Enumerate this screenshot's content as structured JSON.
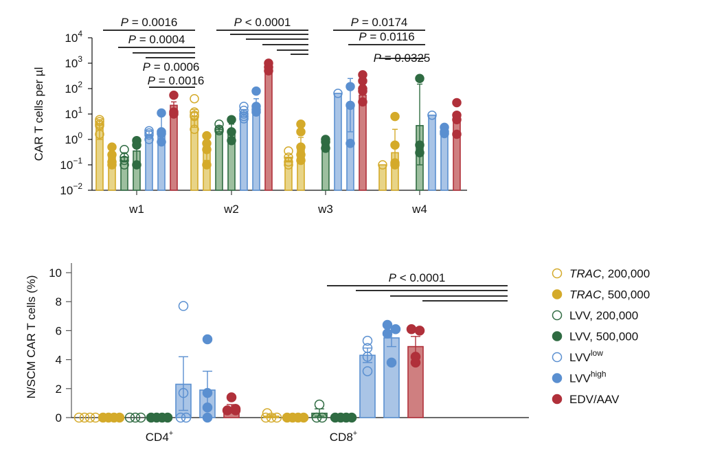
{
  "chart_data": [
    {
      "id": "top",
      "type": "bar",
      "scale": "log",
      "title": "",
      "ylabel": "CAR T cells per µl",
      "xlabel": "",
      "ylim": [
        0.01,
        10000
      ],
      "yticks": [
        {
          "base": "10",
          "exp": "4",
          "value": 10000
        },
        {
          "base": "10",
          "exp": "3",
          "value": 1000
        },
        {
          "base": "10",
          "exp": "2",
          "value": 100
        },
        {
          "base": "10",
          "exp": "1",
          "value": 10
        },
        {
          "base": "10",
          "exp": "0",
          "value": 1
        },
        {
          "base": "10",
          "exp": "−1",
          "value": 0.1
        },
        {
          "base": "10",
          "exp": "−2",
          "value": 0.01
        }
      ],
      "categories": [
        "w1",
        "w2",
        "w3",
        "w4"
      ],
      "series": [
        {
          "name": "TRAC, 200,000",
          "values": [
            4,
            8,
            0.2,
            0.1
          ],
          "points": [
            [
              6,
              5,
              4,
              3.5,
              1.6
            ],
            [
              40,
              12,
              9,
              8,
              2.5
            ],
            [
              0.35,
              0.2,
              0.13,
              0.1
            ],
            [
              0.1
            ]
          ]
        },
        {
          "name": "TRAC, 500,000",
          "values": [
            0.25,
            0.5,
            0.55,
            0.3
          ],
          "points": [
            [
              0.5,
              0.25,
              0.13,
              0.1
            ],
            [
              1.4,
              0.7,
              0.4,
              0.1
            ],
            [
              4,
              2,
              0.5,
              0.25,
              0.15
            ],
            [
              8,
              0.6,
              0.12,
              0.1
            ]
          ]
        },
        {
          "name": "LVV, 200,000",
          "values": [
            0.2,
            2.5,
            null,
            null
          ],
          "points": [
            [
              0.4,
              0.2,
              0.15,
              0.1
            ],
            [
              4,
              2.5,
              2.2
            ]
          ],
          "missing": [
            false,
            false,
            true,
            true
          ]
        },
        {
          "name": "LVV, 500,000",
          "values": [
            0.35,
            2.3,
            0.6,
            3.5
          ],
          "points": [
            [
              0.9,
              0.6,
              0.1
            ],
            [
              6,
              2,
              0.9
            ],
            [
              1,
              0.8,
              0.45
            ],
            [
              250,
              0.6,
              0.3
            ]
          ]
        },
        {
          "name": "LVVlow",
          "values": [
            1.5,
            12,
            65,
            9
          ],
          "points": [
            [
              2.2,
              1.8,
              1.5,
              1
            ],
            [
              20,
              14,
              10,
              8,
              6.5
            ],
            [
              65
            ],
            [
              9
            ]
          ]
        },
        {
          "name": "LVVhigh",
          "values": [
            2,
            15,
            22,
            2.5
          ],
          "points": [
            [
              11,
              2,
              1.7,
              0.8
            ],
            [
              80,
              20,
              15,
              12
            ],
            [
              120,
              22,
              0.7
            ],
            [
              3,
              2,
              1.7
            ]
          ]
        },
        {
          "name": "EDV/AAV",
          "values": [
            22,
            600,
            55,
            8
          ],
          "points": [
            [
              55,
              12,
              10
            ],
            [
              1000,
              700,
              500
            ],
            [
              350,
              200,
              100,
              80,
              30
            ],
            [
              28,
              9,
              6,
              1.6
            ]
          ]
        }
      ],
      "errors": [
        [
          [
            1,
            6
          ],
          [
            0.15,
            0.3
          ],
          [
            0.13,
            0.3
          ],
          [
            0.12,
            0.8
          ],
          [
            1.2,
            2.2
          ],
          [
            0.9,
            11
          ],
          [
            15,
            30
          ]
        ],
        [
          [
            3,
            15
          ],
          [
            0.15,
            0.8
          ],
          [
            2,
            3.5
          ],
          [
            1,
            4
          ],
          [
            8,
            15
          ],
          [
            10,
            40
          ],
          [
            500,
            800
          ]
        ],
        [
          [
            0.13,
            0.25
          ],
          [
            0.15,
            1.2
          ],
          null,
          [
            0.45,
            0.9
          ],
          null,
          [
            2,
            250
          ],
          [
            35,
            80
          ]
        ],
        [
          null,
          [
            0.1,
            2.5
          ],
          null,
          [
            0.1,
            150
          ],
          null,
          null,
          null
        ]
      ],
      "significance": [
        {
          "label": "P = 0.0016",
          "group": "w1",
          "bars": [
            0,
            6
          ]
        },
        {
          "label": "P = 0.0004",
          "group": "w1",
          "bars": [
            1,
            6
          ]
        },
        {
          "label": "",
          "group": "w1",
          "bars": [
            2,
            6
          ]
        },
        {
          "label": "P = 0.0006",
          "group": "w1",
          "bars": [
            3,
            6
          ]
        },
        {
          "label": "P = 0.0016",
          "group": "w1",
          "bars": [
            4,
            6
          ]
        },
        {
          "label": "P < 0.0001",
          "group": "w2",
          "bars": [
            0,
            6
          ]
        },
        {
          "label": "",
          "group": "w2",
          "bars": [
            1,
            6
          ]
        },
        {
          "label": "",
          "group": "w2",
          "bars": [
            2,
            6
          ]
        },
        {
          "label": "",
          "group": "w2",
          "bars": [
            3,
            6
          ]
        },
        {
          "label": "",
          "group": "w2",
          "bars": [
            4,
            6
          ]
        },
        {
          "label": "",
          "group": "w2",
          "bars": [
            5,
            6
          ]
        },
        {
          "label": "P = 0.0174",
          "group": "w3",
          "bars": [
            0,
            6
          ]
        },
        {
          "label": "P = 0.0116",
          "group": "w3",
          "bars": [
            1,
            6
          ]
        },
        {
          "label": "P = 0.0325",
          "group": "w3",
          "bars": [
            3,
            6
          ]
        }
      ]
    },
    {
      "id": "bottom",
      "type": "bar",
      "scale": "linear",
      "title": "",
      "ylabel": "N/SCM CAR T cells (%)",
      "xlabel": "",
      "ylim": [
        0,
        10
      ],
      "yticks": [
        0,
        2,
        4,
        6,
        8,
        10
      ],
      "categories": [
        {
          "base": "CD4",
          "sup": "+"
        },
        {
          "base": "CD8",
          "sup": "+"
        }
      ],
      "series": [
        {
          "name": "TRAC, 200,000",
          "values": [
            0,
            0.1
          ],
          "points": [
            [
              0,
              0,
              0,
              0
            ],
            [
              0.3,
              0,
              0,
              0
            ]
          ]
        },
        {
          "name": "TRAC, 500,000",
          "values": [
            0,
            0
          ],
          "points": [
            [
              0,
              0,
              0,
              0
            ],
            [
              0,
              0,
              0,
              0
            ]
          ]
        },
        {
          "name": "LVV, 200,000",
          "values": [
            0,
            0.3
          ],
          "points": [
            [
              0,
              0,
              0
            ],
            [
              0.9,
              0,
              0
            ]
          ]
        },
        {
          "name": "LVV, 500,000",
          "values": [
            0,
            0
          ],
          "points": [
            [
              0,
              0,
              0,
              0
            ],
            [
              0,
              0,
              0,
              0
            ]
          ]
        },
        {
          "name": "LVVlow",
          "values": [
            2.3,
            4.3
          ],
          "points": [
            [
              7.7,
              1.7,
              0,
              0
            ],
            [
              5.3,
              4.8,
              4.2,
              3.2
            ]
          ]
        },
        {
          "name": "LVVhigh",
          "values": [
            1.9,
            5.5
          ],
          "points": [
            [
              5.4,
              1.7,
              0.7,
              0
            ],
            [
              6.4,
              6.1,
              5.8,
              3.8
            ]
          ]
        },
        {
          "name": "EDV/AAV",
          "values": [
            0.6,
            4.9
          ],
          "points": [
            [
              1.4,
              0.6,
              0.5,
              0.5
            ],
            [
              6.1,
              6.0,
              4.2,
              3.8
            ]
          ]
        }
      ],
      "errors": [
        [
          [
            0,
            0
          ],
          [
            0,
            0
          ],
          [
            0,
            0
          ],
          [
            0,
            0
          ],
          [
            0.5,
            4.2
          ],
          [
            0.6,
            3.2
          ],
          [
            0.4,
            0.9
          ]
        ],
        [
          [
            0,
            0.2
          ],
          [
            0,
            0
          ],
          [
            0.1,
            0.6
          ],
          [
            0,
            0
          ],
          [
            3.8,
            4.8
          ],
          [
            4.9,
            6.0
          ],
          [
            4.2,
            5.6
          ]
        ]
      ],
      "significance": [
        {
          "label": "P < 0.0001",
          "group": "CD8+",
          "bars": [
            0,
            6
          ]
        },
        {
          "label": "",
          "group": "CD8+",
          "bars": [
            1,
            6
          ]
        },
        {
          "label": "",
          "group": "CD8+",
          "bars": [
            2,
            6
          ]
        },
        {
          "label": "",
          "group": "CD8+",
          "bars": [
            3,
            6
          ]
        }
      ]
    }
  ],
  "legend": {
    "placement": "right",
    "items": [
      {
        "italic": "TRAC",
        "text": ", 200,000",
        "sup": "",
        "color": "#d4aa2a",
        "filled": false
      },
      {
        "italic": "TRAC",
        "text": ", 500,000",
        "sup": "",
        "color": "#d4aa2a",
        "filled": true
      },
      {
        "italic": "",
        "text": "LVV, 200,000",
        "sup": "",
        "color": "#2f6b42",
        "filled": false
      },
      {
        "italic": "",
        "text": "LVV, 500,000",
        "sup": "",
        "color": "#2f6b42",
        "filled": true
      },
      {
        "italic": "",
        "text": "LVV",
        "sup": "low",
        "color": "#5a8fd0",
        "filled": false
      },
      {
        "italic": "",
        "text": "LVV",
        "sup": "high",
        "color": "#5a8fd0",
        "filled": true
      },
      {
        "italic": "",
        "text": "EDV/AAV",
        "sup": "",
        "color": "#b0303a",
        "filled": true
      }
    ]
  },
  "colors": {
    "trac_stroke": "#d4aa2a",
    "trac_fill": "#e8d487",
    "lvv_stroke": "#2f6b42",
    "lvv_fill": "#9dbf9f",
    "lvvl_stroke": "#5a8fd0",
    "lvvl_fill": "#a9c4e6",
    "edv_stroke": "#b0303a",
    "edv_fill": "#cf7f80"
  }
}
